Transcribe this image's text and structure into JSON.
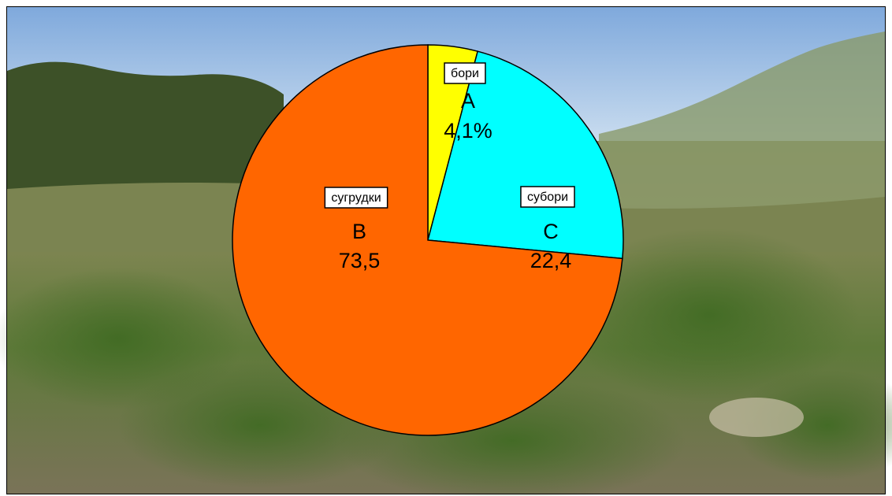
{
  "chart_data": {
    "type": "pie",
    "categories": [
      "A",
      "C",
      "B"
    ],
    "names": [
      "бори",
      "субори",
      "сугрудки"
    ],
    "values": [
      4.1,
      22.4,
      73.5
    ],
    "value_labels": [
      "4,1%",
      "22,4",
      "73,5"
    ],
    "colors": [
      "#ffff00",
      "#00ffff",
      "#ff6600"
    ]
  }
}
